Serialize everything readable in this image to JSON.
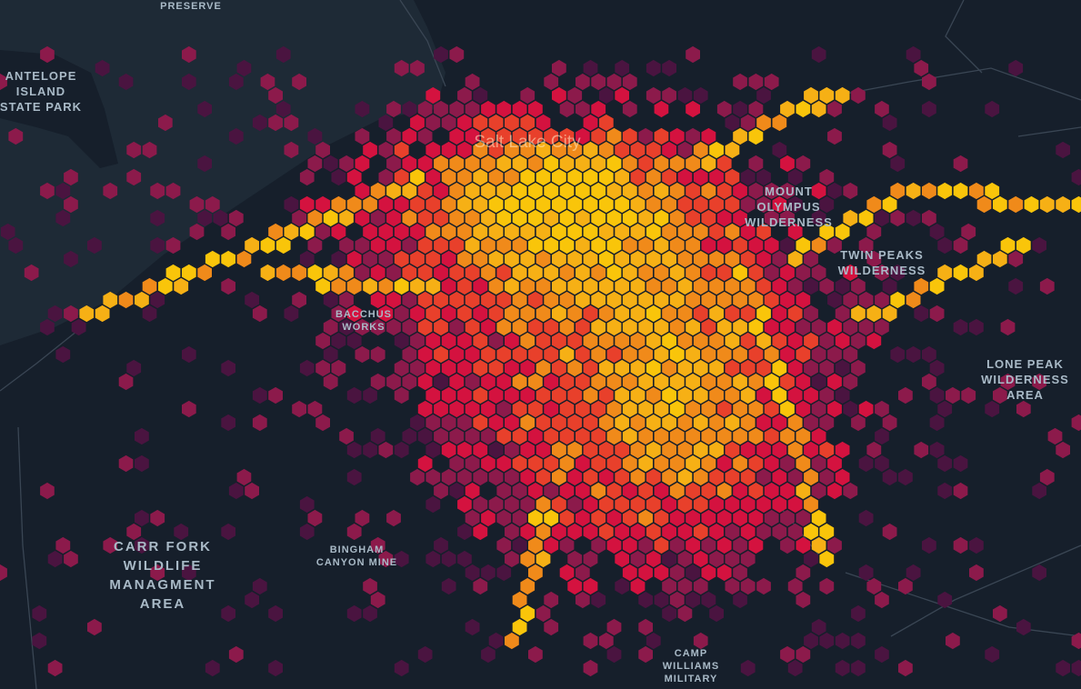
{
  "map": {
    "theme": "dark",
    "colors": {
      "background": "#161f2b",
      "water": "#1e2a36",
      "roads": "#3a4654",
      "label": "#a9bac7"
    },
    "hex_color_scale": [
      "#4a1440",
      "#8c1a4b",
      "#d4123f",
      "#e8402b",
      "#f08a1a",
      "#f6b015",
      "#f9c50a"
    ],
    "city_label": "Salt Lake City",
    "place_labels": {
      "shorelands": "SHORELANDS\nPRESERVE",
      "antelope": "ANTELOPE\nISLAND\nSTATE PARK",
      "mount_olympus": "MOUNT\nOLYMPUS\nWILDERNESS",
      "twin_peaks": "TWIN PEAKS\nWILDERNESS",
      "lone_peak": "LONE PEAK\nWILDERNESS\nAREA",
      "bacchus": "BACCHUS\nWORKS",
      "carr_fork": "CARR FORK\nWILDLIFE\nMANAGMENT\nAREA",
      "bingham": "BINGHAM\nCANYON MINE",
      "camp_williams": "CAMP\nWILLIAMS\nMILITARY"
    }
  }
}
